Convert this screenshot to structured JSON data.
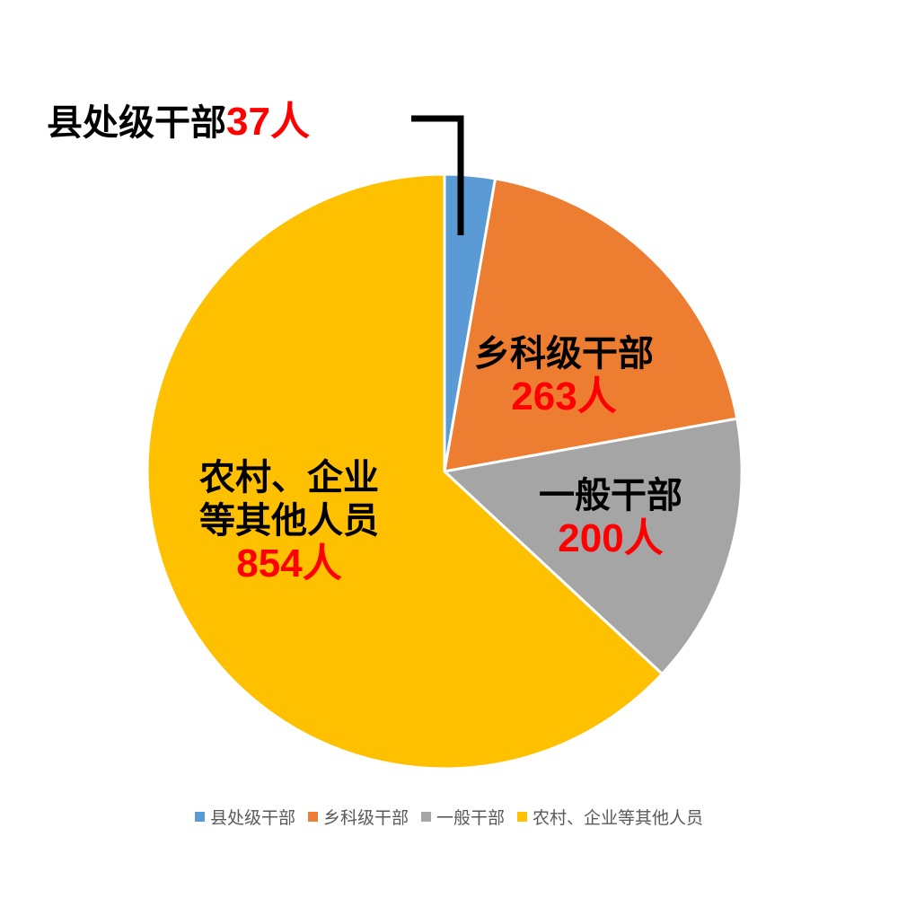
{
  "chart_data": {
    "type": "pie",
    "title": "",
    "categories": [
      "县处级干部",
      "乡科级干部",
      "一般干部",
      "农村、企业等其他人员"
    ],
    "values": [
      37,
      263,
      200,
      854
    ],
    "unit": "人",
    "colors": [
      "#5b9bd5",
      "#ed7d31",
      "#a5a5a5",
      "#ffc000"
    ],
    "start_angle_deg": 0,
    "direction": "clockwise",
    "legend_position": "bottom",
    "data_labels": [
      {
        "name": "县处级干部",
        "value_text": "37人"
      },
      {
        "name": "乡科级干部",
        "value_text": "263人"
      },
      {
        "name": "一般干部",
        "value_text": "200人"
      },
      {
        "name_line1": "农村、企业",
        "name_line2": "等其他人员",
        "value_text": "854人"
      }
    ]
  }
}
